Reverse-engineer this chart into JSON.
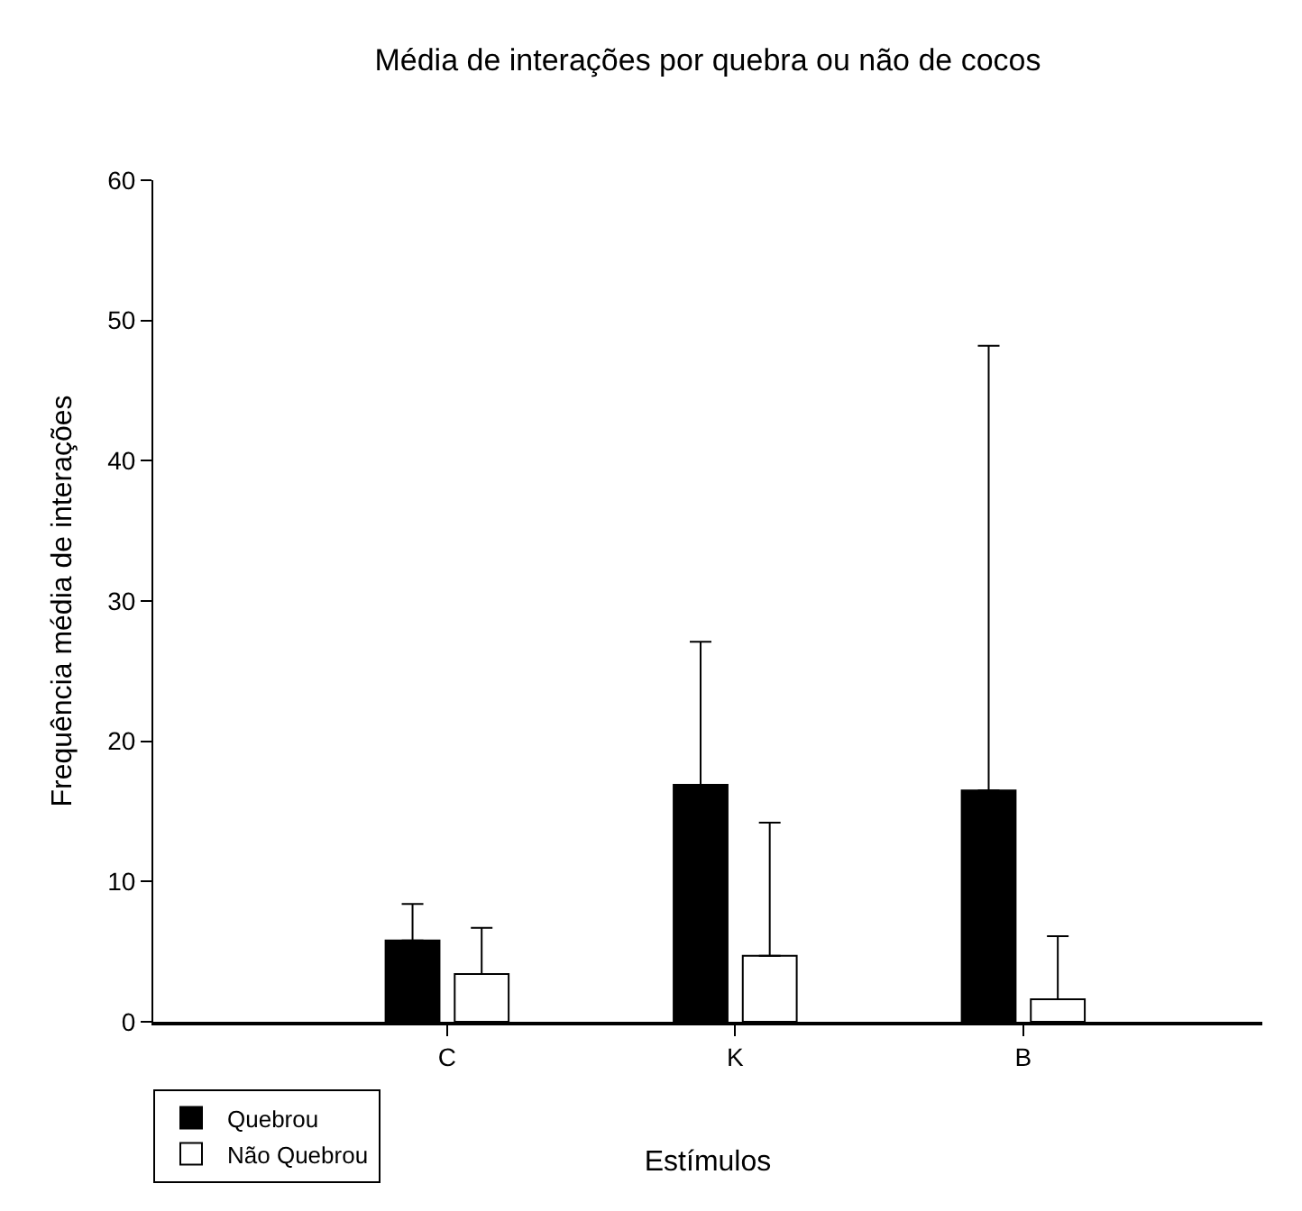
{
  "chart_data": {
    "type": "bar",
    "title": "Média de interações por quebra ou não de cocos",
    "xlabel": "Estímulos",
    "ylabel": "Frequência média de interações",
    "categories": [
      "C",
      "K",
      "B"
    ],
    "series": [
      {
        "name": "Quebrou",
        "color": "#000000",
        "values": [
          5.8,
          16.9,
          16.5
        ],
        "errors": [
          [
            5.8,
            8.4
          ],
          [
            16.9,
            27.1
          ],
          [
            16.5,
            48.2
          ]
        ]
      },
      {
        "name": "Não Quebrou",
        "color": "#ffffff",
        "values": [
          3.4,
          4.7,
          1.6
        ],
        "errors": [
          [
            3.4,
            6.7
          ],
          [
            4.7,
            14.2
          ],
          [
            1.6,
            6.1
          ]
        ]
      }
    ],
    "ylim": [
      0,
      60
    ],
    "yticks": [
      0,
      10,
      20,
      30,
      40,
      50,
      60
    ],
    "grid": false,
    "legend": "bottom left"
  }
}
